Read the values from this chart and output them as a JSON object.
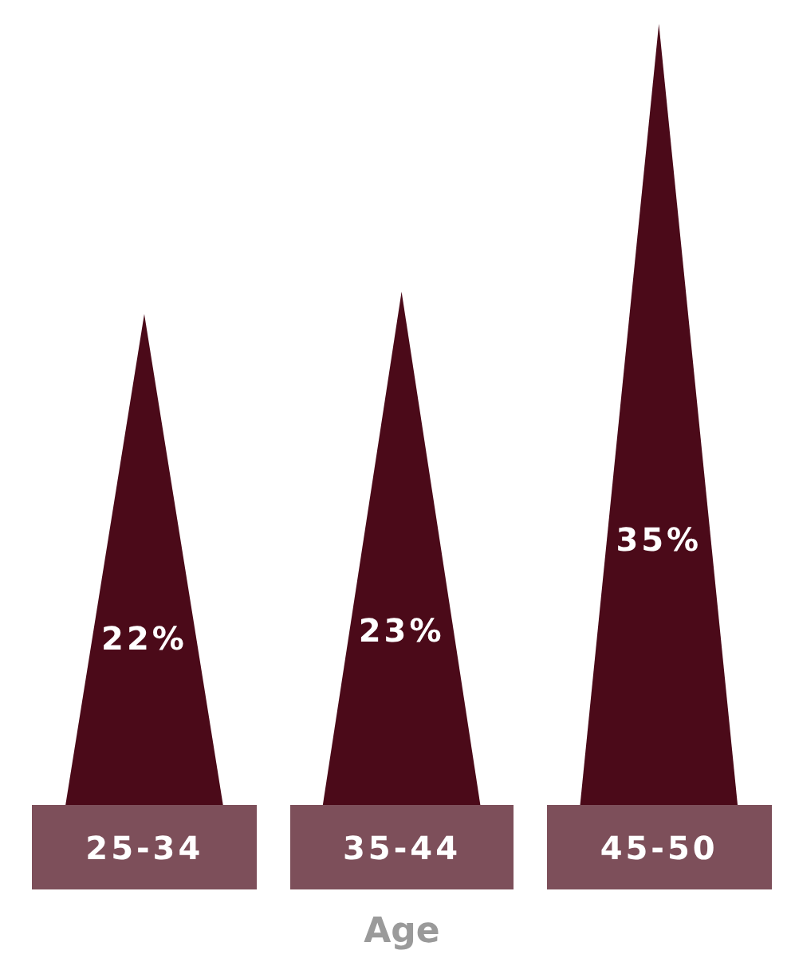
{
  "chart_data": {
    "type": "bar",
    "xlabel": "Age",
    "categories": [
      "25-34",
      "35-44",
      "45-50"
    ],
    "values": [
      22,
      23,
      35
    ],
    "color": "#4b0a19",
    "value_labels": [
      "22%",
      "23%",
      "35%"
    ]
  }
}
